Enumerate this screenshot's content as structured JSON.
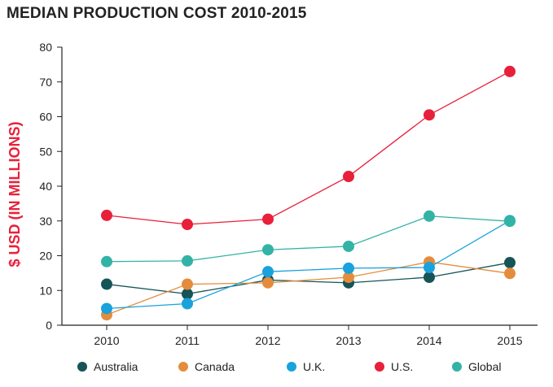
{
  "chart_data": {
    "type": "line",
    "title": "MEDIAN PRODUCTION COST 2010-2015",
    "xlabel": "",
    "ylabel": "$ USD (IN MILLIONS)",
    "ylabel_color": "#e8203a",
    "x": [
      "2010",
      "2011",
      "2012",
      "2013",
      "2014",
      "2015"
    ],
    "ylim": [
      0,
      80
    ],
    "yticks": [
      "0",
      "10",
      "20",
      "30",
      "40",
      "50",
      "60",
      "70",
      "80"
    ],
    "ytick_values": [
      0,
      10,
      20,
      30,
      40,
      50,
      60,
      70,
      80
    ],
    "grid": false,
    "legend_position": "bottom",
    "series": [
      {
        "name": "Australia",
        "color": "#165458",
        "values": [
          11.8,
          9.0,
          13.0,
          12.2,
          13.8,
          18.0
        ]
      },
      {
        "name": "Canada",
        "color": "#e58c3c",
        "values": [
          3.0,
          11.8,
          12.2,
          13.8,
          18.2,
          14.9
        ]
      },
      {
        "name": "U.K.",
        "color": "#1aa2dc",
        "values": [
          4.8,
          6.2,
          15.4,
          16.4,
          16.6,
          30.1
        ]
      },
      {
        "name": "U.S.",
        "color": "#e8203a",
        "values": [
          31.6,
          29.0,
          30.5,
          42.8,
          60.5,
          73.0
        ]
      },
      {
        "name": "Global",
        "color": "#33b3a6",
        "values": [
          18.3,
          18.5,
          21.7,
          22.7,
          31.4,
          29.9
        ]
      }
    ]
  }
}
